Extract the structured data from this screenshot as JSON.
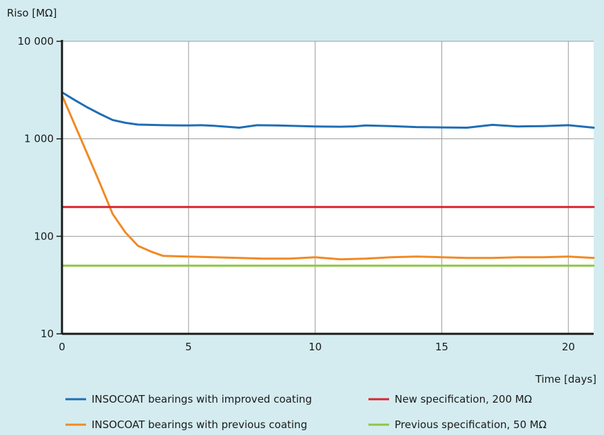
{
  "chart_data": {
    "type": "line",
    "ylabel": "Riso [MΩ]",
    "xlabel": "Time [days]",
    "y_scale": "log",
    "ylim": [
      10,
      10000
    ],
    "xlim": [
      0,
      21
    ],
    "grid": true,
    "legend_position": "bottom",
    "x_ticks": [
      0,
      5,
      10,
      15,
      20
    ],
    "x_tick_labels": [
      "0",
      "5",
      "10",
      "15",
      "20"
    ],
    "y_ticks": [
      10,
      100,
      1000,
      10000
    ],
    "y_tick_labels": [
      "10",
      "100",
      "1 000",
      "10 000"
    ],
    "series": [
      {
        "name": "INSOCOAT bearings with improved coating",
        "color": "#1f6db5",
        "x": [
          0,
          0.5,
          1,
          1.5,
          2,
          2.5,
          3,
          4,
          5,
          5.5,
          6,
          7,
          7.7,
          8.5,
          9.5,
          10,
          11,
          11.5,
          12,
          13,
          14,
          15,
          16,
          17,
          18,
          19,
          20,
          21
        ],
        "y": [
          3000,
          2500,
          2100,
          1800,
          1560,
          1460,
          1400,
          1380,
          1370,
          1380,
          1360,
          1300,
          1380,
          1370,
          1350,
          1340,
          1330,
          1340,
          1370,
          1350,
          1320,
          1310,
          1300,
          1390,
          1340,
          1350,
          1380,
          1300
        ]
      },
      {
        "name": "INSOCOAT bearings with previous coating",
        "color": "#f08a24",
        "x": [
          0,
          0.5,
          1,
          1.5,
          2,
          2.5,
          3,
          3.5,
          4,
          5,
          6,
          7,
          8,
          9,
          10,
          11,
          12,
          13,
          14,
          15,
          16,
          17,
          18,
          19,
          20,
          21
        ],
        "y": [
          2800,
          1400,
          700,
          350,
          170,
          110,
          80,
          70,
          63,
          62,
          61,
          60,
          59,
          59,
          61,
          58,
          59,
          61,
          62,
          61,
          60,
          60,
          61,
          61,
          62,
          60
        ]
      },
      {
        "name": "New specification, 200 MΩ",
        "color": "#d92530",
        "x": [
          0,
          21
        ],
        "y": [
          200,
          200
        ]
      },
      {
        "name": "Previous specification, 50 MΩ",
        "color": "#8dc63f",
        "x": [
          0,
          21
        ],
        "y": [
          50,
          50
        ]
      }
    ]
  }
}
